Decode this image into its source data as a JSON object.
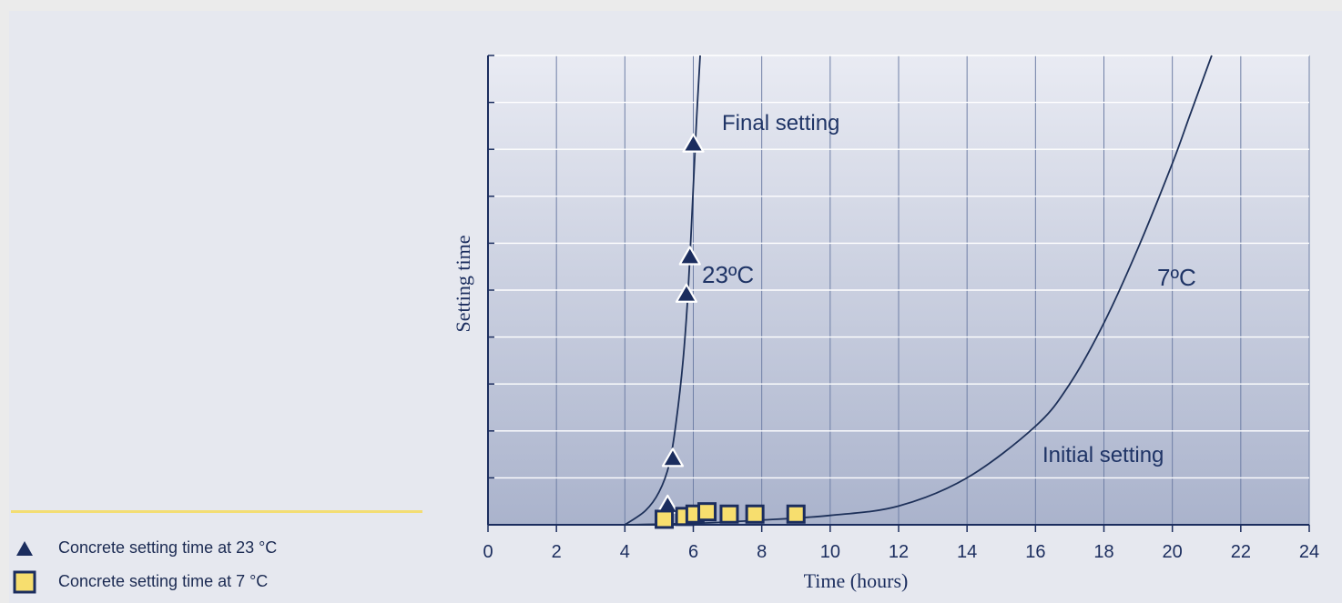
{
  "chart_data": {
    "type": "scatter",
    "xlabel": "Time  (hours)",
    "ylabel": "Setting  time",
    "xlim": [
      0,
      24
    ],
    "x_ticks": [
      "0",
      "2",
      "4",
      "6",
      "8",
      "10",
      "12",
      "14",
      "16",
      "18",
      "20",
      "22",
      "24"
    ],
    "ylim": [
      0,
      10
    ],
    "y_gridlines": 10,
    "grid": true,
    "legend_position": "bottom-left",
    "series": [
      {
        "name": "Concrete  setting time at 23 °C",
        "marker": "triangle",
        "color": "#1b2d5e",
        "x": [
          5.25,
          5.4,
          5.8,
          5.9,
          6.0
        ],
        "y": [
          0.4,
          1.4,
          4.9,
          5.7,
          8.1
        ]
      },
      {
        "name": "Concrete  setting time at 7 °C",
        "marker": "square",
        "color": "#f7de6e",
        "x": [
          5.15,
          5.75,
          6.05,
          6.4,
          7.05,
          7.8,
          9.0
        ],
        "y": [
          0.04,
          0.1,
          0.15,
          0.2,
          0.15,
          0.15,
          0.15
        ]
      }
    ],
    "curves": [
      {
        "label": "23ºC",
        "x": [
          4.0,
          4.6,
          5.0,
          5.3,
          5.5,
          5.7,
          5.85,
          6.0,
          6.1,
          6.2
        ],
        "y": [
          0.0,
          0.3,
          0.7,
          1.3,
          2.2,
          3.5,
          5.0,
          7.2,
          8.7,
          10.0
        ]
      },
      {
        "label": "7ºC",
        "x": [
          4.0,
          6.0,
          8.0,
          10.0,
          12.0,
          14.0,
          16.0,
          17.0,
          18.0,
          19.0,
          20.0,
          20.5,
          21.0,
          21.15
        ],
        "y": [
          0.0,
          0.03,
          0.1,
          0.2,
          0.4,
          1.0,
          2.1,
          3.0,
          4.3,
          5.9,
          7.7,
          8.7,
          9.7,
          10.0
        ]
      }
    ],
    "annotations": [
      "Final  setting",
      "23ºC",
      "7ºC",
      "Initial setting"
    ]
  },
  "colors": {
    "axis": "#1b2d5e",
    "grid_vertical": "#6f7fa6",
    "grid_horizontal": "#ffffff",
    "curve": "#1d3059",
    "plot_top": "#e9ebf3",
    "plot_bottom": "#aab3cc"
  }
}
